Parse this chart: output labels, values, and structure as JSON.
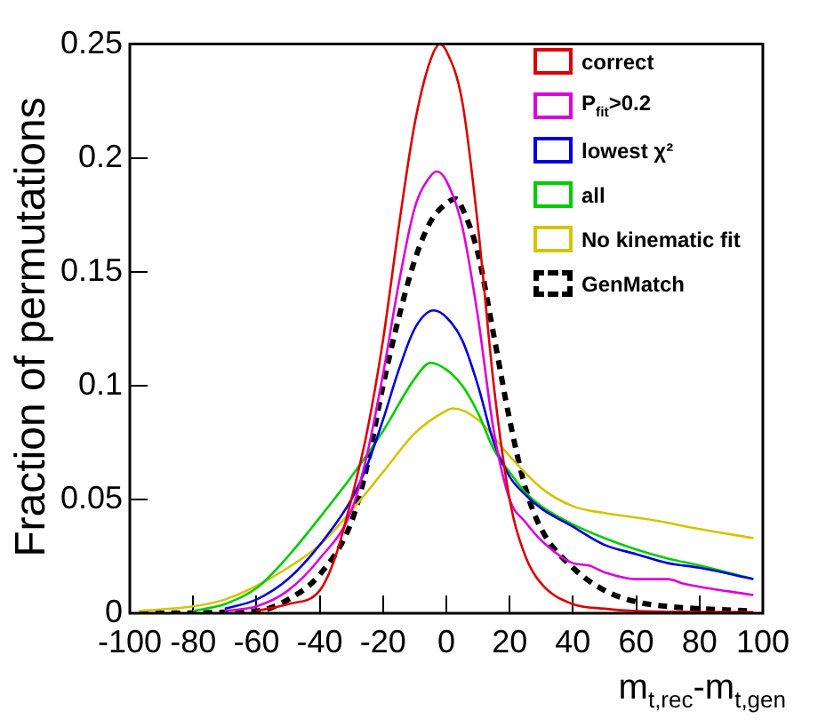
{
  "chart_data": {
    "type": "line",
    "xlabel": "m$_{t,rec}$-m$_{t,gen}$",
    "ylabel": "Fraction of permutations",
    "xlim": [
      -100,
      100
    ],
    "xticks": [
      -100,
      -80,
      -60,
      -40,
      -20,
      0,
      20,
      40,
      60,
      80,
      100
    ],
    "ylim": [
      0,
      0.25
    ],
    "yticks": [
      0,
      0.05,
      0.1,
      0.15,
      0.2,
      0.25
    ],
    "grid": false,
    "legend": "top right",
    "marker": "none",
    "series": [
      {
        "name": "correct",
        "color": "#dd0000",
        "x": [
          -60,
          -50,
          -40,
          -35,
          -30,
          -25,
          -20,
          -15,
          -10,
          -5,
          -2,
          0,
          5,
          10,
          15,
          20,
          25,
          30,
          40,
          50,
          60,
          97
        ],
        "values": [
          0.001,
          0.004,
          0.01,
          0.025,
          0.05,
          0.08,
          0.12,
          0.17,
          0.215,
          0.243,
          0.25,
          0.247,
          0.225,
          0.17,
          0.1,
          0.05,
          0.025,
          0.013,
          0.004,
          0.002,
          0.001,
          0.0005
        ]
      },
      {
        "name": "P$_{fit}$>0.2",
        "color": "#dd00dd",
        "x": [
          -70,
          -60,
          -50,
          -40,
          -30,
          -25,
          -20,
          -15,
          -10,
          -5,
          -3,
          0,
          5,
          10,
          15,
          20,
          25,
          30,
          40,
          45,
          50,
          60,
          70,
          75,
          97
        ],
        "values": [
          0.001,
          0.003,
          0.01,
          0.024,
          0.045,
          0.07,
          0.105,
          0.145,
          0.178,
          0.192,
          0.194,
          0.19,
          0.17,
          0.13,
          0.08,
          0.05,
          0.04,
          0.032,
          0.022,
          0.021,
          0.018,
          0.015,
          0.015,
          0.013,
          0.008
        ]
      },
      {
        "name": "lowest χ²",
        "color": "#0000dd",
        "x": [
          -70,
          -60,
          -50,
          -40,
          -30,
          -25,
          -20,
          -15,
          -10,
          -4,
          0,
          5,
          10,
          15,
          20,
          25,
          30,
          40,
          50,
          60,
          70,
          80,
          97
        ],
        "values": [
          0.002,
          0.006,
          0.015,
          0.03,
          0.05,
          0.065,
          0.085,
          0.107,
          0.125,
          0.133,
          0.13,
          0.12,
          0.1,
          0.075,
          0.06,
          0.052,
          0.046,
          0.038,
          0.03,
          0.026,
          0.022,
          0.02,
          0.015
        ]
      },
      {
        "name": "all",
        "color": "#00cc00",
        "x": [
          -80,
          -70,
          -60,
          -50,
          -40,
          -30,
          -20,
          -10,
          -5,
          0,
          5,
          10,
          15,
          20,
          25,
          30,
          40,
          50,
          60,
          70,
          80,
          97
        ],
        "values": [
          0.001,
          0.004,
          0.011,
          0.025,
          0.042,
          0.06,
          0.08,
          0.103,
          0.11,
          0.107,
          0.1,
          0.088,
          0.072,
          0.062,
          0.053,
          0.047,
          0.039,
          0.033,
          0.028,
          0.024,
          0.021,
          0.015
        ]
      },
      {
        "name": "No kinematic fit",
        "color": "#d4c400",
        "x": [
          -97,
          -80,
          -70,
          -60,
          -50,
          -40,
          -30,
          -20,
          -10,
          0,
          2,
          10,
          20,
          30,
          40,
          50,
          60,
          65,
          80,
          97
        ],
        "values": [
          0.001,
          0.003,
          0.006,
          0.012,
          0.02,
          0.03,
          0.045,
          0.062,
          0.079,
          0.089,
          0.09,
          0.085,
          0.069,
          0.055,
          0.047,
          0.044,
          0.042,
          0.041,
          0.037,
          0.033
        ]
      },
      {
        "name": "GenMatch",
        "color": "#000000",
        "line_style": "dashed",
        "x": [
          -97,
          -60,
          -50,
          -40,
          -30,
          -25,
          -20,
          -15,
          -10,
          -5,
          0,
          3,
          5,
          10,
          15,
          20,
          25,
          30,
          40,
          50,
          60,
          70,
          80,
          97
        ],
        "values": [
          0,
          0.001,
          0.006,
          0.017,
          0.04,
          0.065,
          0.1,
          0.13,
          0.155,
          0.172,
          0.18,
          0.182,
          0.178,
          0.158,
          0.122,
          0.085,
          0.055,
          0.037,
          0.02,
          0.01,
          0.005,
          0.003,
          0.002,
          0.001
        ]
      }
    ]
  }
}
